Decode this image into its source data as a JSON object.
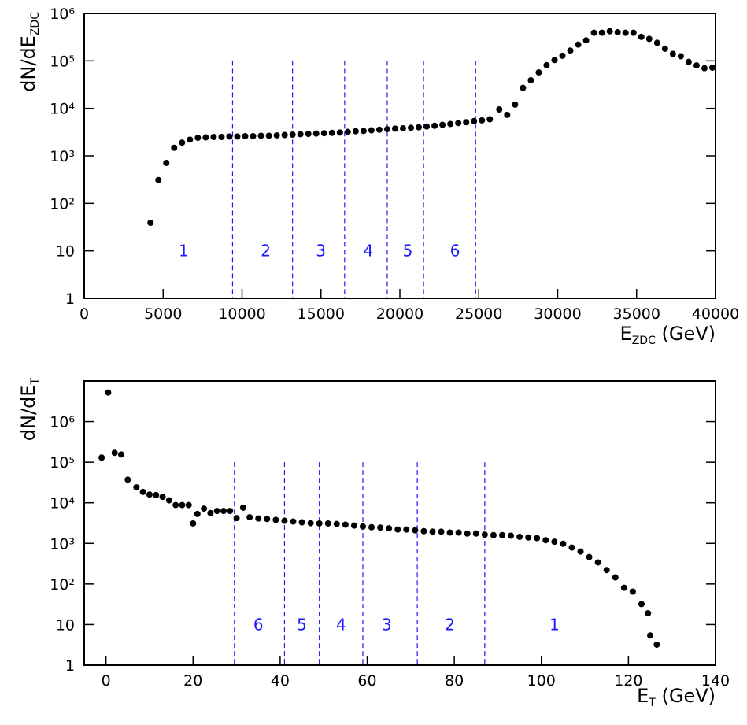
{
  "chart_data": [
    {
      "type": "scatter",
      "log_y": true,
      "color": "#000000",
      "xlim": [
        0,
        40000
      ],
      "ylim": [
        1,
        1000000
      ],
      "xticks": [
        0,
        5000,
        10000,
        15000,
        20000,
        25000,
        30000,
        35000,
        40000
      ],
      "yticks": [
        1,
        10,
        {
          "value": 100,
          "label": "10²"
        },
        {
          "value": 1000,
          "label": "10³"
        },
        {
          "value": 10000,
          "label": "10⁴"
        },
        {
          "value": 100000,
          "label": "10⁵"
        },
        {
          "value": 1000000,
          "label": "10⁶"
        }
      ],
      "xlabel": {
        "text": "E",
        "subscript": "ZDC",
        "suffix": " (GeV)"
      },
      "ylabel": {
        "text": "dN/dE",
        "subscript": "ZDC"
      },
      "x": [
        4200,
        4700,
        5200,
        5700,
        6200,
        6700,
        7200,
        7700,
        8200,
        8700,
        9200,
        9700,
        10200,
        10700,
        11200,
        11700,
        12200,
        12700,
        13200,
        13700,
        14200,
        14700,
        15200,
        15700,
        16200,
        16700,
        17200,
        17700,
        18200,
        18700,
        19200,
        19700,
        20200,
        20700,
        21200,
        21700,
        22200,
        22700,
        23200,
        23700,
        24200,
        24700,
        25200,
        25700,
        26300,
        26800,
        27300,
        27800,
        28300,
        28800,
        29300,
        29800,
        30300,
        30800,
        31300,
        31800,
        32300,
        32800,
        33300,
        33800,
        34300,
        34800,
        35300,
        35800,
        36300,
        36800,
        37300,
        37800,
        38300,
        38800,
        39300,
        39800
      ],
      "values": [
        39,
        310,
        710,
        1480,
        1900,
        2200,
        2400,
        2450,
        2500,
        2500,
        2550,
        2550,
        2600,
        2600,
        2650,
        2650,
        2700,
        2750,
        2800,
        2850,
        2900,
        2950,
        3000,
        3050,
        3100,
        3200,
        3300,
        3350,
        3450,
        3550,
        3650,
        3750,
        3800,
        3900,
        4000,
        4150,
        4300,
        4500,
        4700,
        4900,
        5100,
        5400,
        5600,
        5900,
        9500,
        7300,
        12000,
        27000,
        39000,
        57000,
        81000,
        104000,
        128000,
        165000,
        220000,
        270000,
        390000,
        390000,
        420000,
        400000,
        390000,
        390000,
        320000,
        290000,
        240000,
        180000,
        140000,
        125000,
        95000,
        80000,
        70000,
        72000
      ],
      "dividers": {
        "x": [
          9400,
          13200,
          16500,
          19200,
          21500,
          24800
        ],
        "ymax": 100000,
        "color": "#1a1aff"
      },
      "annotations": [
        {
          "text": "1",
          "x": 6300,
          "y": 10
        },
        {
          "text": "2",
          "x": 11500,
          "y": 10
        },
        {
          "text": "3",
          "x": 15000,
          "y": 10
        },
        {
          "text": "4",
          "x": 18000,
          "y": 10
        },
        {
          "text": "5",
          "x": 20500,
          "y": 10
        },
        {
          "text": "6",
          "x": 23500,
          "y": 10
        }
      ]
    },
    {
      "type": "scatter",
      "log_y": true,
      "color": "#000000",
      "xlim": [
        -5,
        140
      ],
      "ylim": [
        1,
        10000000
      ],
      "xticks": [
        0,
        20,
        40,
        60,
        80,
        100,
        120,
        140
      ],
      "yticks": [
        1,
        10,
        {
          "value": 100,
          "label": "10²"
        },
        {
          "value": 1000,
          "label": "10³"
        },
        {
          "value": 10000,
          "label": "10⁴"
        },
        {
          "value": 100000,
          "label": "10⁵"
        },
        {
          "value": 1000000,
          "label": "10⁶"
        }
      ],
      "xlabel": {
        "text": "E",
        "subscript": "T",
        "suffix": " (GeV)"
      },
      "ylabel": {
        "text": "dN/dE",
        "subscript": "T"
      },
      "x": [
        -1,
        0.5,
        2,
        3.5,
        5,
        7,
        8.5,
        10,
        11.5,
        13,
        14.5,
        16,
        17.5,
        19,
        20,
        21,
        22.5,
        24,
        25.5,
        27,
        28.5,
        30,
        31.5,
        33,
        35,
        37,
        39,
        41,
        43,
        45,
        47,
        49,
        51,
        53,
        55,
        57,
        59,
        61,
        63,
        65,
        67,
        69,
        71,
        73,
        75,
        77,
        79,
        81,
        83,
        85,
        87,
        89,
        91,
        93,
        95,
        97,
        99,
        101,
        103,
        105,
        107,
        109,
        111,
        113,
        115,
        117,
        119,
        121,
        123,
        124.5,
        125,
        126.5
      ],
      "values": [
        130000,
        5200000,
        170000,
        155000,
        37000,
        24000,
        18500,
        16000,
        15500,
        14000,
        11500,
        8800,
        8800,
        8800,
        3100,
        5300,
        7200,
        5600,
        6300,
        6300,
        6300,
        4200,
        7600,
        4400,
        4100,
        4000,
        3800,
        3600,
        3450,
        3300,
        3150,
        3100,
        3100,
        3000,
        2900,
        2750,
        2600,
        2500,
        2450,
        2350,
        2200,
        2200,
        2100,
        2000,
        1950,
        1950,
        1850,
        1850,
        1750,
        1750,
        1650,
        1600,
        1600,
        1550,
        1450,
        1400,
        1350,
        1200,
        1100,
        980,
        790,
        630,
        460,
        340,
        220,
        145,
        81,
        65,
        32,
        19,
        5.4,
        3.2
      ],
      "dividers": {
        "x": [
          29.5,
          41,
          49,
          59,
          71.5,
          87
        ],
        "ymax": 100000,
        "color": "#1a1aff"
      },
      "annotations": [
        {
          "text": "6",
          "x": 35,
          "y": 10
        },
        {
          "text": "5",
          "x": 45,
          "y": 10
        },
        {
          "text": "4",
          "x": 54,
          "y": 10
        },
        {
          "text": "3",
          "x": 64.5,
          "y": 10
        },
        {
          "text": "2",
          "x": 79,
          "y": 10
        },
        {
          "text": "1",
          "x": 103,
          "y": 10
        }
      ]
    }
  ]
}
